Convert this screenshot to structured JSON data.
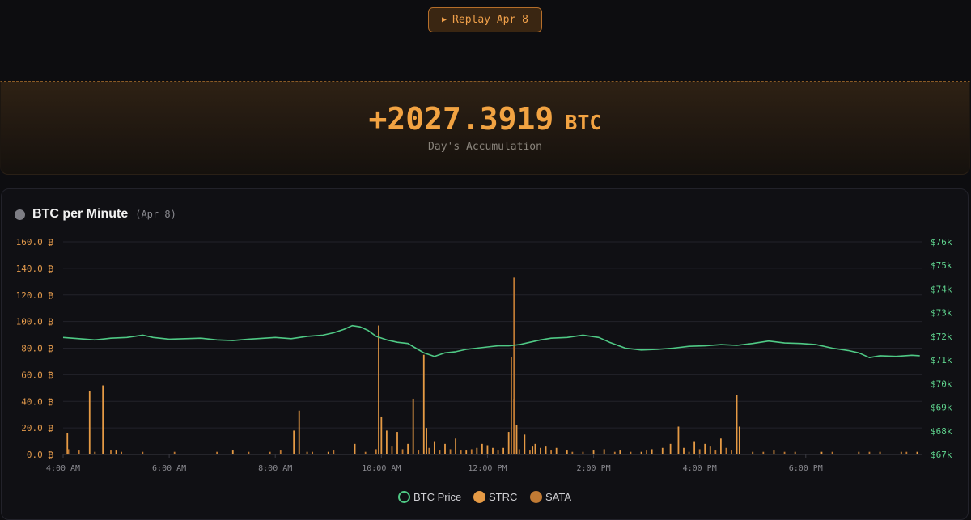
{
  "replay_button": {
    "icon": "play-icon",
    "label": "Replay Apr 8"
  },
  "accumulation": {
    "value": "+2027.3919",
    "unit": "BTC",
    "label": "Day's Accumulation"
  },
  "chart_panel": {
    "title": "BTC per Minute",
    "date": "(Apr 8)"
  },
  "colors": {
    "price": "#4fc985",
    "strc": "#e59a45",
    "sata": "#c07a34",
    "accent": "#f2a342"
  },
  "chart_data": {
    "type": "bar",
    "y_left": {
      "ticks": [
        "0.0 ₿",
        "20.0 ₿",
        "40.0 ₿",
        "60.0 ₿",
        "80.0 ₿",
        "100.0 ₿",
        "120.0 ₿",
        "140.0 ₿",
        "160.0 ₿"
      ],
      "range": [
        0,
        160
      ]
    },
    "y_right": {
      "ticks": [
        "$67k",
        "$68k",
        "$69k",
        "$70k",
        "$71k",
        "$72k",
        "$73k",
        "$74k",
        "$75k",
        "$76k"
      ],
      "range": [
        67,
        76
      ]
    },
    "x": {
      "ticks": [
        "4:00 AM",
        "6:00 AM",
        "8:00 AM",
        "10:00 AM",
        "12:00 PM",
        "2:00 PM",
        "4:00 PM",
        "6:00 PM"
      ],
      "tick_hours": [
        4,
        6,
        8,
        10,
        12,
        14,
        16,
        18
      ],
      "range_hours": [
        4,
        20.2
      ]
    },
    "legend": [
      "BTC Price",
      "STRC",
      "SATA"
    ],
    "grid": true,
    "price_series": {
      "name": "BTC Price",
      "points": [
        [
          4.0,
          71.95
        ],
        [
          4.3,
          71.9
        ],
        [
          4.6,
          71.85
        ],
        [
          4.9,
          71.92
        ],
        [
          5.2,
          71.95
        ],
        [
          5.5,
          72.05
        ],
        [
          5.7,
          71.95
        ],
        [
          6.0,
          71.88
        ],
        [
          6.3,
          71.9
        ],
        [
          6.6,
          71.92
        ],
        [
          6.9,
          71.85
        ],
        [
          7.2,
          71.82
        ],
        [
          7.5,
          71.88
        ],
        [
          7.8,
          71.92
        ],
        [
          8.0,
          71.95
        ],
        [
          8.3,
          71.9
        ],
        [
          8.6,
          72.0
        ],
        [
          8.9,
          72.05
        ],
        [
          9.1,
          72.15
        ],
        [
          9.3,
          72.3
        ],
        [
          9.45,
          72.45
        ],
        [
          9.6,
          72.4
        ],
        [
          9.75,
          72.25
        ],
        [
          9.9,
          72.0
        ],
        [
          10.1,
          71.85
        ],
        [
          10.3,
          71.75
        ],
        [
          10.5,
          71.7
        ],
        [
          10.65,
          71.5
        ],
        [
          10.8,
          71.3
        ],
        [
          11.0,
          71.15
        ],
        [
          11.2,
          71.3
        ],
        [
          11.4,
          71.35
        ],
        [
          11.6,
          71.45
        ],
        [
          11.8,
          71.5
        ],
        [
          12.0,
          71.55
        ],
        [
          12.2,
          71.6
        ],
        [
          12.4,
          71.6
        ],
        [
          12.6,
          71.65
        ],
        [
          12.8,
          71.75
        ],
        [
          13.0,
          71.85
        ],
        [
          13.2,
          71.92
        ],
        [
          13.5,
          71.95
        ],
        [
          13.8,
          72.05
        ],
        [
          14.1,
          71.95
        ],
        [
          14.3,
          71.75
        ],
        [
          14.6,
          71.5
        ],
        [
          14.9,
          71.42
        ],
        [
          15.2,
          71.45
        ],
        [
          15.5,
          71.5
        ],
        [
          15.8,
          71.58
        ],
        [
          16.1,
          71.6
        ],
        [
          16.4,
          71.65
        ],
        [
          16.7,
          71.62
        ],
        [
          17.0,
          71.7
        ],
        [
          17.3,
          71.8
        ],
        [
          17.6,
          71.72
        ],
        [
          17.9,
          71.7
        ],
        [
          18.2,
          71.65
        ],
        [
          18.5,
          71.5
        ],
        [
          18.8,
          71.4
        ],
        [
          19.0,
          71.3
        ],
        [
          19.2,
          71.1
        ],
        [
          19.4,
          71.18
        ],
        [
          19.7,
          71.15
        ],
        [
          20.0,
          71.2
        ],
        [
          20.15,
          71.18
        ]
      ]
    },
    "bar_series": [
      {
        "name": "STRC",
        "bars": [
          [
            4.08,
            16
          ],
          [
            4.5,
            48
          ],
          [
            4.6,
            2
          ],
          [
            4.75,
            52
          ],
          [
            5.0,
            3
          ],
          [
            7.2,
            3
          ],
          [
            8.35,
            18
          ],
          [
            8.45,
            33
          ],
          [
            8.6,
            2
          ],
          [
            9.0,
            2
          ],
          [
            9.5,
            8
          ],
          [
            9.95,
            97
          ],
          [
            10.0,
            28
          ],
          [
            10.1,
            18
          ],
          [
            10.3,
            17
          ],
          [
            10.5,
            8
          ],
          [
            10.6,
            42
          ],
          [
            10.8,
            75
          ],
          [
            10.85,
            20
          ],
          [
            11.0,
            10
          ],
          [
            11.2,
            8
          ],
          [
            11.4,
            12
          ],
          [
            11.6,
            3
          ],
          [
            11.8,
            5
          ],
          [
            11.9,
            8
          ],
          [
            12.0,
            7
          ],
          [
            12.1,
            5
          ],
          [
            12.3,
            5
          ],
          [
            12.4,
            17
          ],
          [
            12.5,
            42
          ],
          [
            12.55,
            22
          ],
          [
            12.7,
            15
          ],
          [
            12.85,
            6
          ],
          [
            12.9,
            8
          ],
          [
            13.0,
            5
          ],
          [
            13.1,
            6
          ],
          [
            13.3,
            5
          ],
          [
            13.5,
            3
          ],
          [
            14.0,
            3
          ],
          [
            14.2,
            4
          ],
          [
            14.5,
            3
          ],
          [
            14.9,
            2
          ],
          [
            15.1,
            4
          ],
          [
            15.3,
            5
          ],
          [
            15.45,
            8
          ],
          [
            15.6,
            21
          ],
          [
            15.7,
            5
          ],
          [
            15.9,
            10
          ],
          [
            16.1,
            8
          ],
          [
            16.2,
            6
          ],
          [
            16.4,
            12
          ],
          [
            16.7,
            45
          ],
          [
            16.75,
            21
          ],
          [
            17.0,
            2
          ],
          [
            17.4,
            3
          ],
          [
            17.8,
            2
          ],
          [
            18.3,
            2
          ],
          [
            19.0,
            2
          ],
          [
            19.4,
            2
          ],
          [
            19.8,
            2
          ],
          [
            20.1,
            2
          ]
        ]
      },
      {
        "name": "SATA",
        "bars": [
          [
            4.1,
            4
          ],
          [
            4.3,
            3
          ],
          [
            4.9,
            3
          ],
          [
            5.1,
            2
          ],
          [
            5.5,
            2
          ],
          [
            6.1,
            2
          ],
          [
            6.9,
            2
          ],
          [
            7.5,
            2
          ],
          [
            7.9,
            2
          ],
          [
            8.1,
            3
          ],
          [
            8.7,
            2
          ],
          [
            9.1,
            3
          ],
          [
            9.7,
            2
          ],
          [
            9.9,
            4
          ],
          [
            10.2,
            6
          ],
          [
            10.4,
            4
          ],
          [
            10.7,
            3
          ],
          [
            10.9,
            5
          ],
          [
            11.1,
            3
          ],
          [
            11.3,
            4
          ],
          [
            11.5,
            3
          ],
          [
            11.7,
            4
          ],
          [
            12.2,
            3
          ],
          [
            12.45,
            73
          ],
          [
            12.5,
            133
          ],
          [
            12.6,
            4
          ],
          [
            12.8,
            3
          ],
          [
            13.2,
            3
          ],
          [
            13.6,
            2
          ],
          [
            13.8,
            2
          ],
          [
            14.4,
            2
          ],
          [
            14.7,
            2
          ],
          [
            15.0,
            3
          ],
          [
            15.8,
            2
          ],
          [
            16.0,
            4
          ],
          [
            16.3,
            3
          ],
          [
            16.5,
            5
          ],
          [
            16.6,
            3
          ],
          [
            17.2,
            2
          ],
          [
            17.6,
            2
          ],
          [
            18.5,
            2
          ],
          [
            19.2,
            2
          ],
          [
            19.9,
            2
          ]
        ]
      }
    ]
  }
}
